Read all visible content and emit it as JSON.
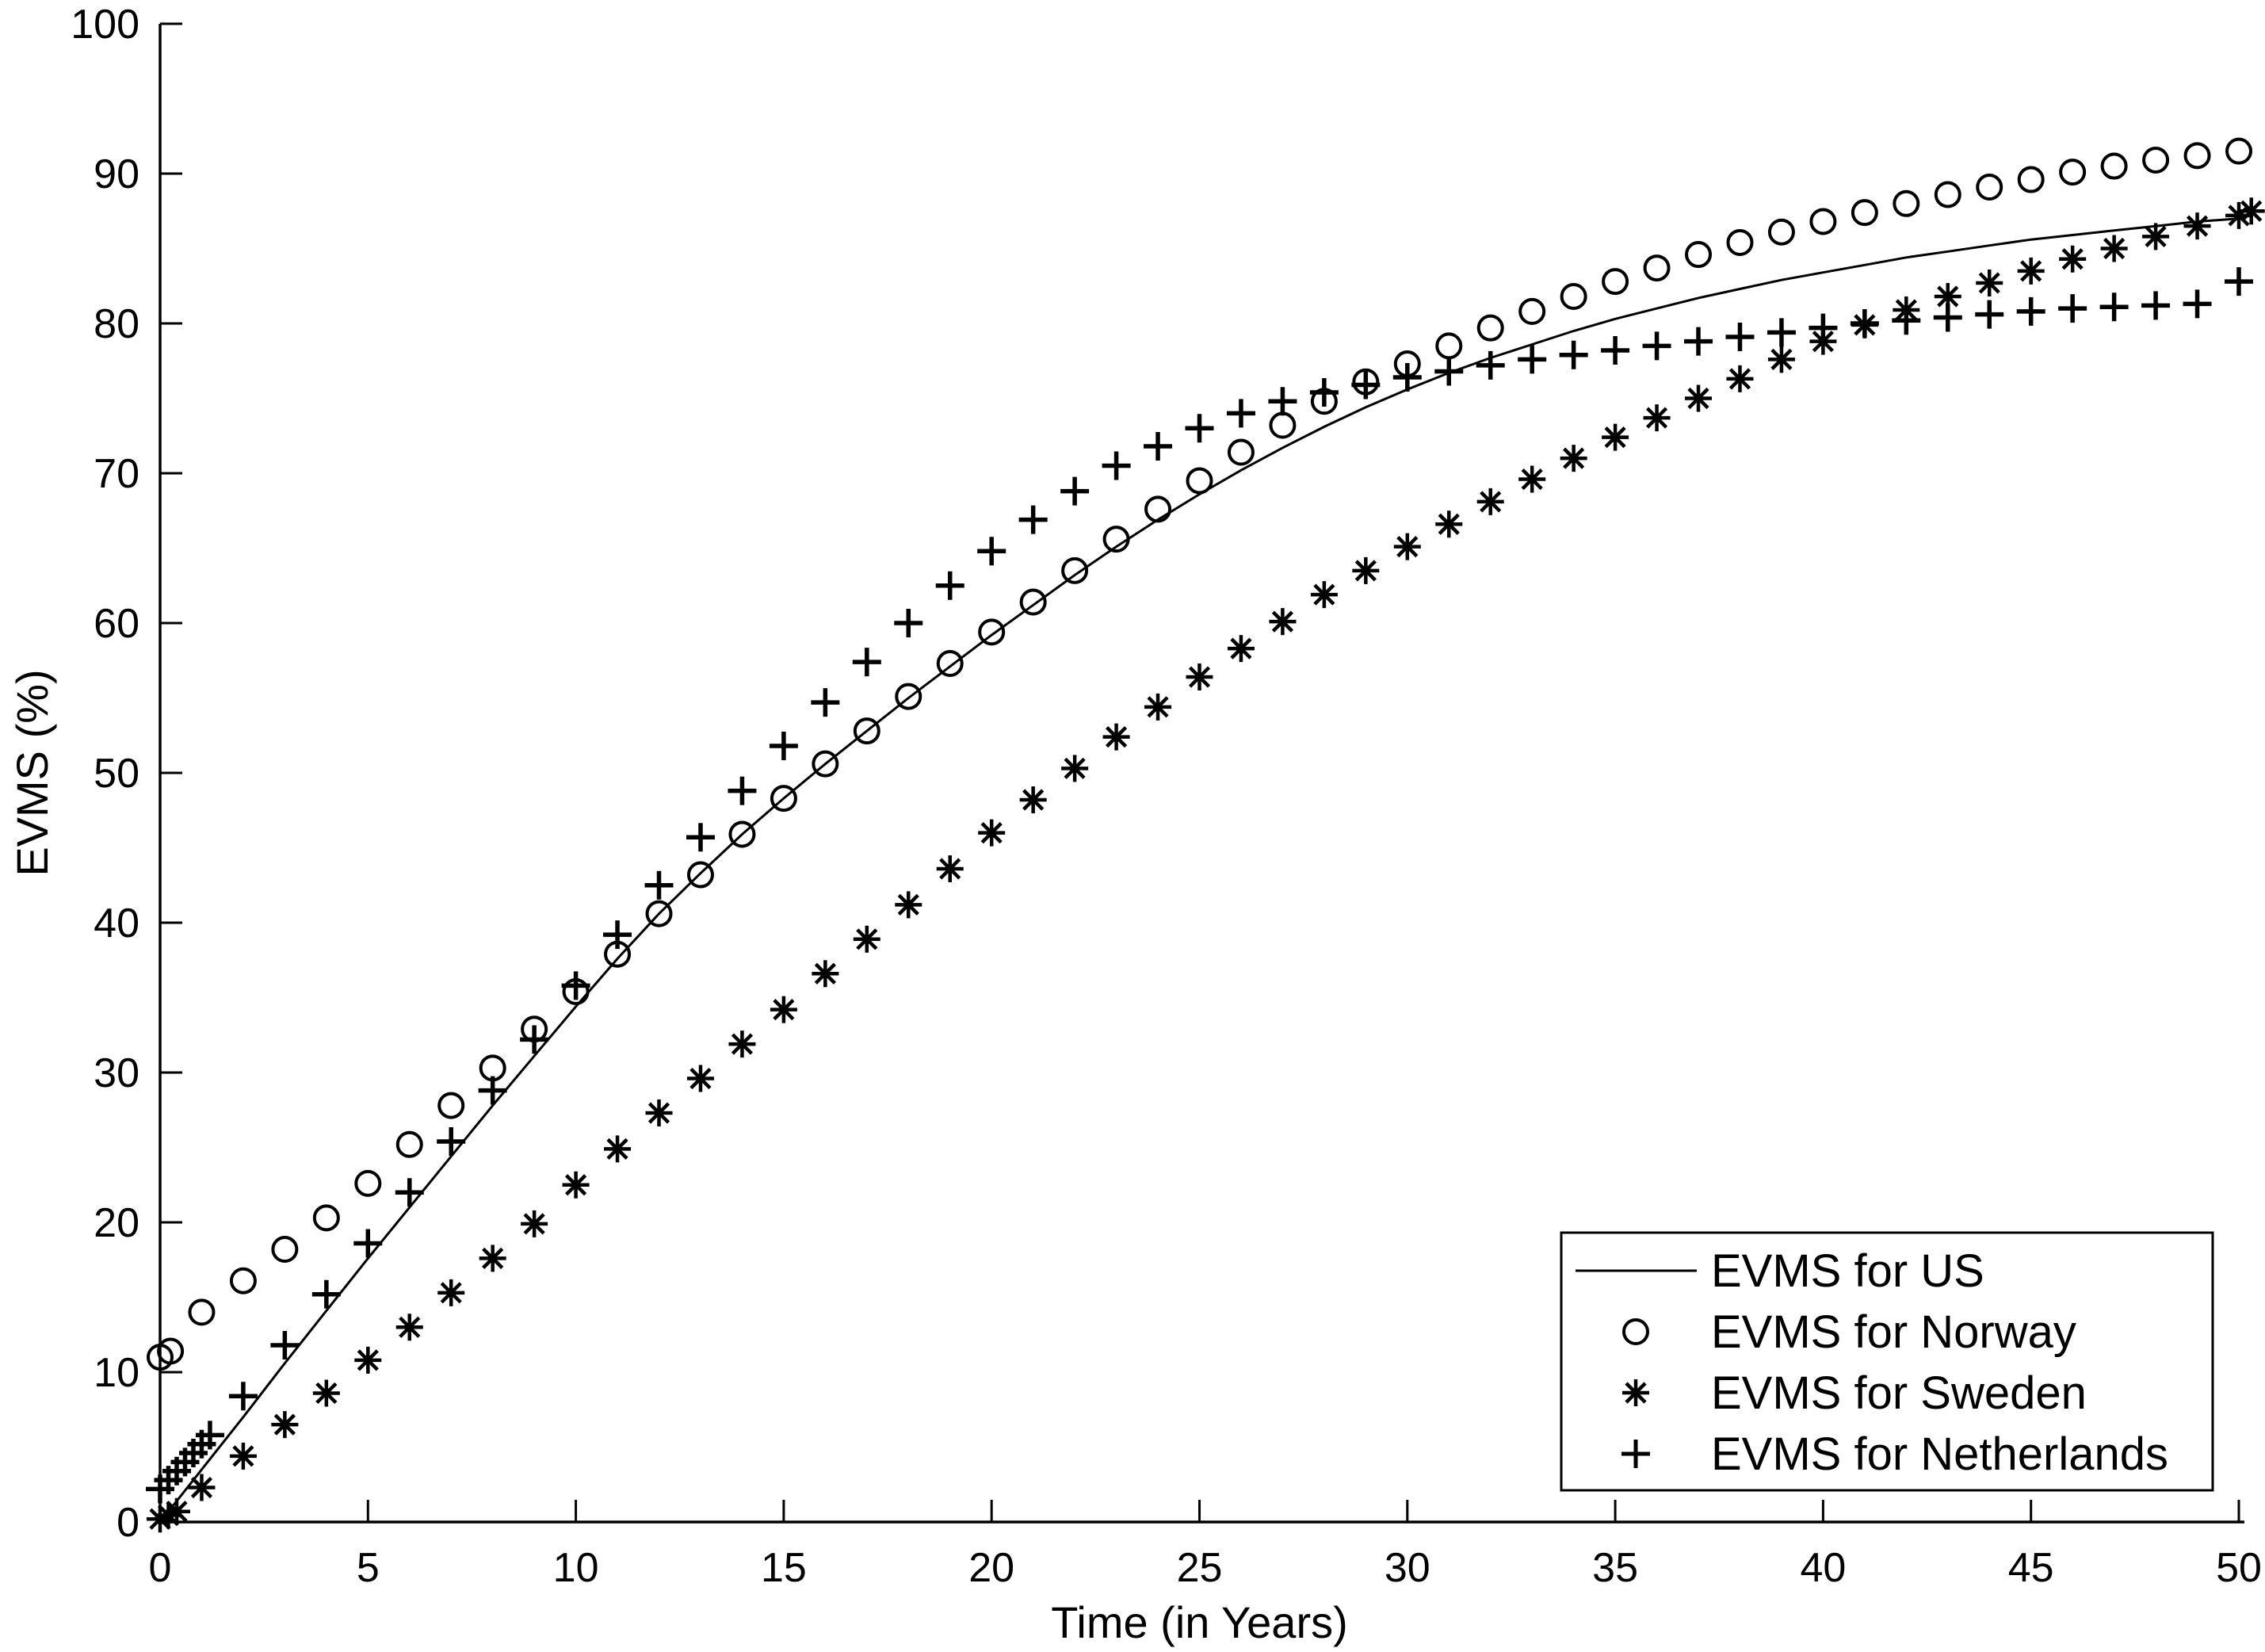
{
  "colors": {
    "ink": "#000000",
    "background": "#ffffff"
  },
  "chart_data": {
    "type": "line",
    "title": "",
    "xlabel": "Time (in Years)",
    "ylabel": "EVMS (%)",
    "xlim": [
      0,
      50
    ],
    "ylim": [
      0,
      100
    ],
    "grid": false,
    "box": "left-bottom-only",
    "legend_position": "lower right",
    "xticks": [
      0,
      5,
      10,
      15,
      20,
      25,
      30,
      35,
      40,
      45,
      50
    ],
    "xtick_labels": [
      "0",
      "5",
      "10",
      "15",
      "20",
      "25",
      "30",
      "35",
      "40",
      "45",
      "50"
    ],
    "yticks": [
      0,
      10,
      20,
      30,
      40,
      50,
      60,
      70,
      80,
      90,
      100
    ],
    "ytick_labels": [
      "0",
      "10",
      "20",
      "30",
      "40",
      "50",
      "60",
      "70",
      "80",
      "90",
      "100"
    ],
    "series": [
      {
        "name": "EVMS for US",
        "marker": "line",
        "draw_line": true,
        "x": [
          0,
          1,
          2,
          3,
          4,
          5,
          6,
          7,
          8,
          9,
          10,
          11,
          12,
          13,
          14,
          15,
          16,
          17,
          18,
          19,
          20,
          21,
          22,
          23,
          24,
          25,
          26,
          27,
          28,
          29,
          30,
          31,
          32,
          33,
          34,
          35,
          36,
          37,
          38,
          39,
          40,
          41,
          42,
          43,
          44,
          45,
          46,
          47,
          48,
          49,
          50
        ],
        "y": [
          0,
          3.5,
          7,
          10.6,
          14.1,
          17.6,
          21,
          24.4,
          27.8,
          31.1,
          34.4,
          37.6,
          40.6,
          43.3,
          45.9,
          48.3,
          50.6,
          52.8,
          55,
          57.1,
          59.2,
          61.2,
          63.2,
          65.1,
          66.9,
          68.6,
          70.2,
          71.7,
          73.1,
          74.4,
          75.6,
          76.7,
          77.7,
          78.6,
          79.5,
          80.3,
          81,
          81.7,
          82.3,
          82.9,
          83.4,
          83.9,
          84.4,
          84.8,
          85.2,
          85.6,
          85.9,
          86.2,
          86.5,
          86.8,
          87
        ]
      },
      {
        "name": "EVMS for Norway",
        "marker": "circle",
        "draw_line": false,
        "x": [
          0,
          0.25,
          1,
          2,
          3,
          4,
          5,
          6,
          7,
          8,
          9,
          10,
          11,
          12,
          13,
          14,
          15,
          16,
          17,
          18,
          19,
          20,
          21,
          22,
          23,
          24,
          25,
          26,
          27,
          28,
          29,
          30,
          31,
          32,
          33,
          34,
          35,
          36,
          37,
          38,
          39,
          40,
          41,
          42,
          43,
          44,
          45,
          46,
          47,
          48,
          49,
          50
        ],
        "y": [
          11,
          11.4,
          14,
          16.1,
          18.2,
          20.3,
          22.6,
          25.2,
          27.8,
          30.3,
          32.9,
          35.4,
          37.9,
          40.6,
          43.2,
          45.9,
          48.3,
          50.6,
          52.8,
          55.1,
          57.3,
          59.4,
          61.4,
          63.5,
          65.6,
          67.6,
          69.5,
          71.4,
          73.2,
          74.8,
          76.1,
          77.3,
          78.5,
          79.7,
          80.8,
          81.8,
          82.8,
          83.7,
          84.6,
          85.4,
          86.1,
          86.8,
          87.4,
          88,
          88.6,
          89.1,
          89.6,
          90.1,
          90.5,
          90.9,
          91.2,
          91.5
        ]
      },
      {
        "name": "EVMS for Sweden",
        "marker": "asterisk",
        "draw_line": false,
        "x": [
          0,
          0.2,
          0.4,
          1,
          2,
          3,
          4,
          5,
          6,
          7,
          8,
          9,
          10,
          11,
          12,
          13,
          14,
          15,
          16,
          17,
          18,
          19,
          20,
          21,
          22,
          23,
          24,
          25,
          26,
          27,
          28,
          29,
          30,
          31,
          32,
          33,
          34,
          35,
          36,
          37,
          38,
          39,
          40,
          41,
          42,
          43,
          44,
          45,
          46,
          47,
          48,
          49,
          50,
          50.3
        ],
        "y": [
          0.2,
          0.45,
          0.7,
          2.3,
          4.4,
          6.5,
          8.6,
          10.8,
          13,
          15.3,
          17.6,
          19.9,
          22.5,
          24.9,
          27.3,
          29.6,
          31.9,
          34.2,
          36.6,
          38.9,
          41.2,
          43.6,
          46,
          48.2,
          50.3,
          52.4,
          54.4,
          56.4,
          58.3,
          60.1,
          61.9,
          63.5,
          65.1,
          66.6,
          68.1,
          69.6,
          71,
          72.4,
          73.7,
          75,
          76.3,
          77.6,
          78.8,
          79.9,
          80.9,
          81.8,
          82.7,
          83.5,
          84.3,
          85,
          85.8,
          86.5,
          87.2,
          87.5
        ]
      },
      {
        "name": "EVMS for Netherlands",
        "marker": "plus",
        "draw_line": false,
        "x": [
          0,
          0.2,
          0.4,
          0.6,
          0.8,
          1,
          1.2,
          2,
          3,
          4,
          5,
          6,
          7,
          8,
          9,
          10,
          11,
          12,
          13,
          14,
          15,
          16,
          17,
          18,
          19,
          20,
          21,
          22,
          23,
          24,
          25,
          26,
          27,
          28,
          29,
          30,
          31,
          32,
          33,
          34,
          35,
          36,
          37,
          38,
          39,
          40,
          41,
          42,
          43,
          44,
          45,
          46,
          47,
          48,
          49,
          50
        ],
        "y": [
          2.2,
          2.8,
          3.4,
          4,
          4.6,
          5.2,
          5.8,
          8.4,
          11.8,
          15.2,
          18.6,
          22,
          25.4,
          28.8,
          32.2,
          35.8,
          39.2,
          42.5,
          45.7,
          48.8,
          51.8,
          54.7,
          57.4,
          60,
          62.5,
          64.8,
          66.9,
          68.8,
          70.5,
          71.8,
          73,
          74,
          74.8,
          75.4,
          75.9,
          76.4,
          76.8,
          77.2,
          77.6,
          77.9,
          78.2,
          78.5,
          78.8,
          79.1,
          79.4,
          79.7,
          80,
          80.2,
          80.4,
          80.6,
          80.8,
          81,
          81.1,
          81.2,
          81.3,
          82.8
        ]
      }
    ],
    "legend": {
      "entries": [
        {
          "label": "EVMS for US",
          "marker": "line"
        },
        {
          "label": "EVMS for Norway",
          "marker": "circle"
        },
        {
          "label": "EVMS for Sweden",
          "marker": "asterisk"
        },
        {
          "label": "EVMS for Netherlands",
          "marker": "plus"
        }
      ]
    }
  }
}
